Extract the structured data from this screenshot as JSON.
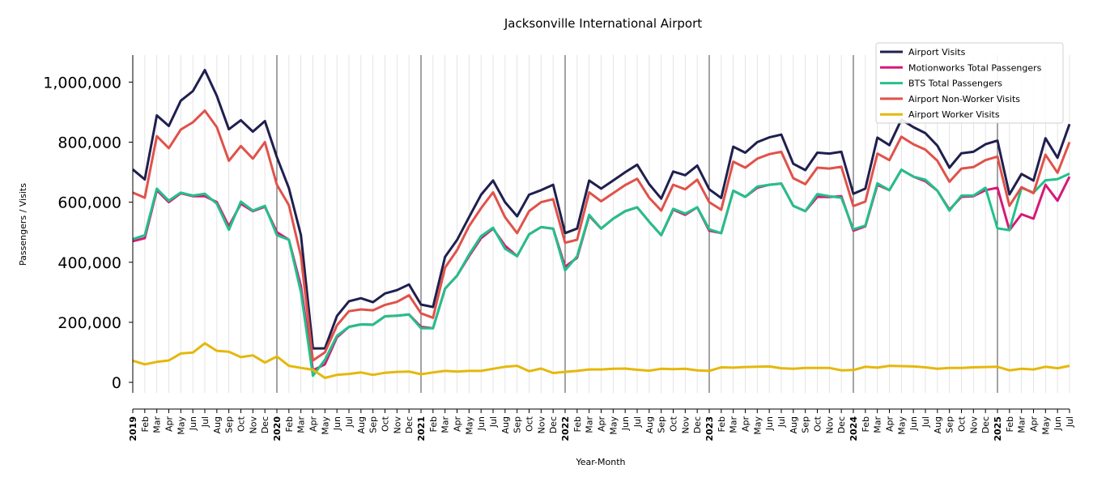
{
  "chart_data": {
    "type": "line",
    "title": "Jacksonville International Airport",
    "xlabel": "Year-Month",
    "ylabel": "Passengers / Visits",
    "ylim": [
      -35000,
      1090000
    ],
    "yticks": [
      0,
      200000,
      400000,
      600000,
      800000,
      1000000
    ],
    "ytick_labels": [
      "0",
      "200,000",
      "400,000",
      "600,000",
      "800,000",
      "1,000,000"
    ],
    "grid": "vertical monthly lines, darker at each January",
    "legend_placement": "top-right",
    "start": "2019-01",
    "months": [
      "Jan",
      "Feb",
      "Mar",
      "Apr",
      "May",
      "Jun",
      "Jul",
      "Aug",
      "Sep",
      "Oct",
      "Nov",
      "Dec"
    ],
    "years": [
      "2019",
      "2020",
      "2021",
      "2022",
      "2023",
      "2024",
      "2025"
    ],
    "series": [
      {
        "name": "Airport Visits",
        "color": "#1f1f4f",
        "values": [
          709000,
          676000,
          889000,
          854000,
          938000,
          970000,
          1040000,
          954000,
          843000,
          873000,
          835000,
          870000,
          750000,
          647000,
          490000,
          113000,
          113000,
          221000,
          270000,
          280000,
          267000,
          296000,
          307000,
          326000,
          259000,
          251000,
          418000,
          474000,
          550000,
          625000,
          672000,
          600000,
          553000,
          625000,
          640000,
          658000,
          497000,
          512000,
          672000,
          645000,
          672000,
          700000,
          725000,
          660000,
          612000,
          702000,
          690000,
          722000,
          643000,
          614000,
          785000,
          765000,
          800000,
          816000,
          825000,
          728000,
          707000,
          765000,
          762000,
          768000,
          628000,
          645000,
          815000,
          790000,
          875000,
          850000,
          830000,
          788000,
          715000,
          763000,
          768000,
          793000,
          805000,
          626000,
          694000,
          672000,
          813000,
          748000,
          860000
        ]
      },
      {
        "name": "Motionworks Total Passengers",
        "color": "#d6197a",
        "values": [
          470000,
          480000,
          640000,
          600000,
          630000,
          620000,
          620000,
          600000,
          520000,
          595000,
          570000,
          585000,
          500000,
          475000,
          320000,
          40000,
          60000,
          150000,
          185000,
          193000,
          192000,
          220000,
          222000,
          226000,
          185000,
          180000,
          312000,
          355000,
          420000,
          480000,
          512000,
          455000,
          420000,
          493000,
          517000,
          512000,
          385000,
          415000,
          555000,
          512000,
          545000,
          570000,
          583000,
          535000,
          490000,
          575000,
          558000,
          583000,
          505000,
          497000,
          638000,
          618000,
          648000,
          658000,
          662000,
          588000,
          570000,
          618000,
          617000,
          620000,
          505000,
          520000,
          658000,
          640000,
          708000,
          685000,
          670000,
          638000,
          575000,
          618000,
          620000,
          640000,
          648000,
          507000,
          560000,
          545000,
          658000,
          605000,
          685000
        ]
      },
      {
        "name": "BTS Total Passengers",
        "color": "#22c18a",
        "values": [
          477000,
          490000,
          645000,
          605000,
          632000,
          622000,
          628000,
          595000,
          508000,
          602000,
          572000,
          588000,
          490000,
          475000,
          300000,
          22000,
          75000,
          155000,
          185000,
          193000,
          192000,
          220000,
          222000,
          226000,
          180000,
          180000,
          312000,
          355000,
          425000,
          487000,
          515000,
          445000,
          420000,
          493000,
          517000,
          512000,
          373000,
          420000,
          558000,
          512000,
          545000,
          570000,
          583000,
          535000,
          490000,
          578000,
          562000,
          583000,
          510000,
          497000,
          638000,
          618000,
          652000,
          658000,
          662000,
          588000,
          570000,
          627000,
          620000,
          615000,
          510000,
          522000,
          663000,
          640000,
          708000,
          685000,
          675000,
          638000,
          572000,
          622000,
          622000,
          648000,
          513000,
          507000,
          648000,
          632000,
          673000,
          677000,
          695000
        ]
      },
      {
        "name": "Airport Non-Worker Visits",
        "color": "#e0524a",
        "values": [
          632000,
          615000,
          820000,
          780000,
          842000,
          866000,
          905000,
          850000,
          738000,
          787000,
          745000,
          800000,
          658000,
          590000,
          420000,
          73000,
          100000,
          190000,
          237000,
          243000,
          240000,
          258000,
          268000,
          290000,
          230000,
          215000,
          382000,
          440000,
          520000,
          580000,
          633000,
          550000,
          497000,
          570000,
          600000,
          610000,
          465000,
          475000,
          633000,
          603000,
          630000,
          657000,
          678000,
          615000,
          572000,
          658000,
          643000,
          675000,
          600000,
          575000,
          735000,
          715000,
          745000,
          760000,
          768000,
          680000,
          660000,
          715000,
          712000,
          718000,
          587000,
          602000,
          762000,
          740000,
          818000,
          793000,
          775000,
          738000,
          668000,
          712000,
          717000,
          740000,
          752000,
          588000,
          650000,
          630000,
          758000,
          698000,
          800000
        ]
      },
      {
        "name": "Airport Worker Visits",
        "color": "#e5b80b",
        "values": [
          72000,
          60000,
          68000,
          73000,
          96000,
          99000,
          130000,
          105000,
          102000,
          84000,
          90000,
          66000,
          86000,
          55000,
          48000,
          42000,
          15000,
          25000,
          28000,
          33000,
          25000,
          32000,
          35000,
          36000,
          27000,
          33000,
          38000,
          36000,
          38000,
          38000,
          45000,
          52000,
          55000,
          37000,
          46000,
          31000,
          35000,
          38000,
          43000,
          43000,
          45000,
          46000,
          42000,
          39000,
          45000,
          44000,
          45000,
          40000,
          38000,
          50000,
          49000,
          51000,
          52000,
          53000,
          47000,
          45000,
          48000,
          48000,
          48000,
          40000,
          41000,
          52000,
          49000,
          55000,
          54000,
          53000,
          50000,
          45000,
          48000,
          48000,
          50000,
          51000,
          52000,
          40000,
          45000,
          43000,
          52000,
          47000,
          55000
        ]
      }
    ]
  }
}
